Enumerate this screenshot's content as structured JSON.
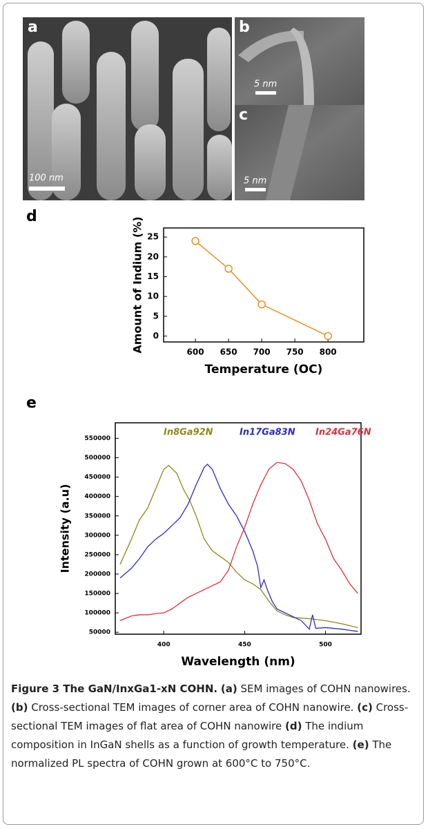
{
  "images": [
    {
      "panel": "a",
      "scale_bar": "100 nm"
    },
    {
      "panel": "b",
      "scale_bar": "5 nm"
    },
    {
      "panel": "c",
      "scale_bar": "5 nm"
    }
  ],
  "chart_data": [
    {
      "type": "line",
      "panel": "d",
      "x_label": "Temperature (OC)",
      "y_label": "Amount of Indium (%)",
      "xlim": [
        552,
        854
      ],
      "xticks": [
        600,
        650,
        700,
        750,
        800
      ],
      "ylim": [
        -1.5,
        27.3
      ],
      "yticks": [
        0,
        5,
        10,
        15,
        20,
        25
      ],
      "markers": true,
      "series": [
        {
          "color": "#ef8f22",
          "x": [
            600,
            650,
            700,
            800
          ],
          "values": [
            24,
            17,
            8,
            0
          ]
        }
      ]
    },
    {
      "type": "line",
      "panel": "e",
      "x_label": "Wavelength (nm)",
      "y_label": "Intensity (a.u)",
      "xlim": [
        370,
        522
      ],
      "xticks": [
        400,
        450,
        500
      ],
      "ylim": [
        45000,
        590000
      ],
      "yticks": [
        50000,
        100000,
        150000,
        200000,
        250000,
        300000,
        350000,
        400000,
        450000,
        500000,
        550000
      ],
      "markers": false,
      "series": [
        {
          "name": "In8Ga92N",
          "color": "#8a8a1a",
          "x": [
            373,
            380,
            385,
            390,
            395,
            400,
            403,
            408,
            412,
            416,
            420,
            425,
            430,
            435,
            440,
            445,
            450,
            455,
            460,
            465,
            470,
            475,
            480,
            490,
            500,
            510,
            520
          ],
          "values": [
            225000,
            290000,
            340000,
            370000,
            420000,
            470000,
            480000,
            460000,
            420000,
            390000,
            350000,
            290000,
            260000,
            245000,
            230000,
            205000,
            185000,
            175000,
            160000,
            130000,
            105000,
            95000,
            88000,
            85000,
            80000,
            72000,
            62000
          ]
        },
        {
          "name": "In17Ga83N",
          "color": "#2b2bd0",
          "x": [
            373,
            380,
            385,
            390,
            395,
            400,
            405,
            410,
            415,
            420,
            425,
            427,
            430,
            435,
            440,
            445,
            450,
            455,
            458,
            460,
            462,
            464,
            467,
            470,
            475,
            480,
            485,
            490,
            492,
            494,
            500,
            510,
            520
          ],
          "values": [
            190000,
            215000,
            240000,
            270000,
            290000,
            305000,
            325000,
            345000,
            380000,
            430000,
            475000,
            483000,
            470000,
            420000,
            380000,
            350000,
            310000,
            260000,
            220000,
            165000,
            185000,
            160000,
            130000,
            110000,
            100000,
            90000,
            80000,
            58000,
            95000,
            60000,
            62000,
            58000,
            52000
          ]
        },
        {
          "name": "In24Ga76N",
          "color": "#e0303a",
          "x": [
            373,
            380,
            385,
            390,
            395,
            400,
            405,
            410,
            415,
            420,
            425,
            430,
            435,
            440,
            445,
            450,
            455,
            460,
            465,
            470,
            475,
            480,
            485,
            490,
            495,
            500,
            505,
            510,
            515,
            520
          ],
          "values": [
            80000,
            92000,
            95000,
            95000,
            98000,
            100000,
            110000,
            125000,
            140000,
            150000,
            160000,
            170000,
            180000,
            210000,
            270000,
            320000,
            380000,
            430000,
            470000,
            488000,
            485000,
            470000,
            440000,
            390000,
            330000,
            290000,
            240000,
            210000,
            175000,
            150000
          ]
        }
      ]
    }
  ],
  "caption": {
    "title": "Figure 3 The GaN/InxGa1-xN COHN.",
    "items": [
      {
        "label": "(a)",
        "text": "SEM images of COHN nanowires."
      },
      {
        "label": "(b)",
        "text": "Cross-sectional TEM images of corner area of COHN nanowire."
      },
      {
        "label": "(c)",
        "text": "Cross-sectional TEM images of flat area of COHN nanowire"
      },
      {
        "label": "(d)",
        "text": "The indium composition in InGaN shells as a function of growth temperature."
      },
      {
        "label": "(e)",
        "text": "The normalized PL spectra of COHN grown at 600°C to 750°C."
      }
    ]
  }
}
